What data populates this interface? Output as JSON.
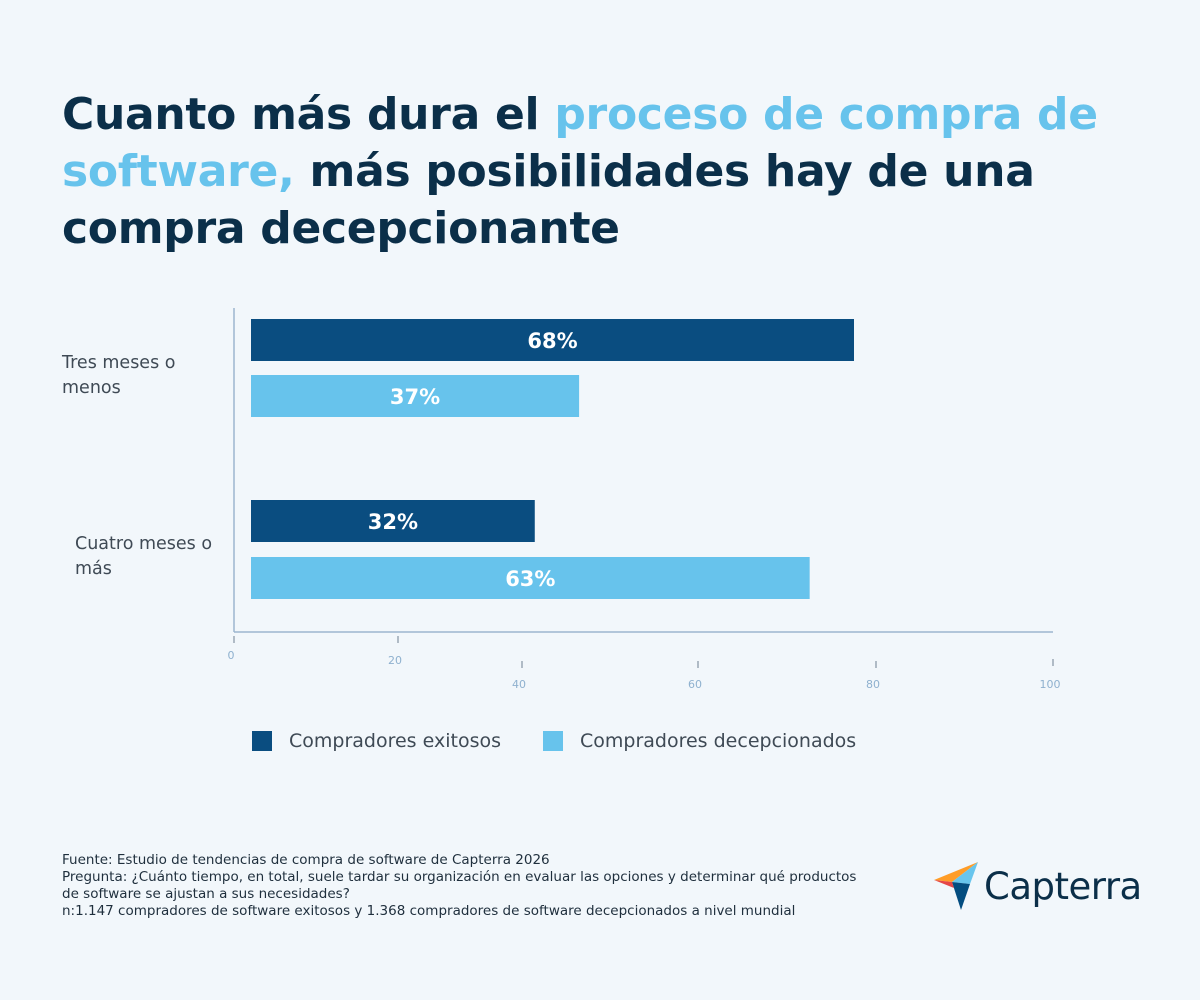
{
  "title": {
    "part1": "Cuanto más dura el ",
    "highlight": "proceso de compra de software,",
    "part2": " más posibilidades hay de una compra decepcionante"
  },
  "colors": {
    "dark_bar": "#0a4d80",
    "light_bar": "#67c3ec",
    "title": "#0b2f49",
    "highlight": "#67c3ec",
    "axis": "#9cb6cf",
    "background": "#f2f7fb"
  },
  "chart_data": {
    "type": "bar",
    "orientation": "horizontal",
    "categories": [
      "Tres meses o menos",
      "Cuatro meses o más"
    ],
    "series": [
      {
        "name": "Compradores exitosos",
        "values": [
          68,
          32
        ],
        "labels": [
          "68%",
          "32%"
        ]
      },
      {
        "name": "Compradores decepcionados",
        "values": [
          37,
          63
        ],
        "labels": [
          "37%",
          "63%"
        ]
      }
    ],
    "xticks": [
      "0",
      "20",
      "40",
      "60",
      "80",
      "100"
    ],
    "xlim": [
      0,
      100
    ],
    "grid": false,
    "legend_position": "bottom"
  },
  "legend": {
    "item1": "Compradores exitosos",
    "item2": "Compradores decepcionados"
  },
  "footer": {
    "source": "Fuente: Estudio de tendencias de compra de software de Capterra 2026",
    "question": "Pregunta: ¿Cuánto tiempo, en total, suele tardar su organización en evaluar las opciones y determinar qué productos de software se ajustan a sus necesidades?",
    "sample": "n:1.147 compradores de software exitosos y 1.368 compradores de software decepcionados a nivel mundial"
  },
  "logo": {
    "text": "Capterra",
    "icon": "capterra-arrow-icon"
  }
}
